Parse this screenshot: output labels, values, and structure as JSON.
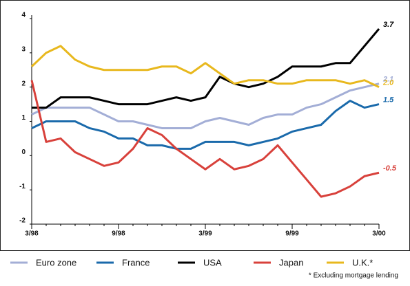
{
  "chart_data": {
    "type": "line",
    "categories": [
      "3/98",
      null,
      null,
      null,
      null,
      null,
      "9/98",
      null,
      null,
      null,
      null,
      null,
      "3/99",
      null,
      null,
      null,
      null,
      null,
      "9/99",
      null,
      null,
      null,
      null,
      null,
      "3/00"
    ],
    "series": [
      {
        "name": "Euro zone",
        "color": "#a3aed6",
        "values": [
          1.2,
          1.4,
          1.4,
          1.4,
          1.4,
          1.2,
          1.0,
          1.0,
          0.9,
          0.8,
          0.8,
          0.8,
          1.0,
          1.1,
          1.0,
          0.9,
          1.1,
          1.2,
          1.2,
          1.4,
          1.5,
          1.7,
          1.9,
          2.0,
          2.1
        ],
        "value_labels": [
          null,
          null,
          null,
          null,
          null,
          null,
          null,
          null,
          null,
          null,
          null,
          null,
          null,
          null,
          null,
          null,
          null,
          null,
          null,
          null,
          null,
          null,
          null,
          null,
          "2.1"
        ]
      },
      {
        "name": "France",
        "color": "#1a6aab",
        "values": [
          0.8,
          1.0,
          1.0,
          1.0,
          0.8,
          0.7,
          0.5,
          0.5,
          0.3,
          0.3,
          0.2,
          0.2,
          0.4,
          0.4,
          0.4,
          0.3,
          0.4,
          0.5,
          0.7,
          0.8,
          0.9,
          1.3,
          1.6,
          1.4,
          1.5
        ],
        "value_labels": [
          null,
          null,
          null,
          null,
          null,
          null,
          null,
          null,
          null,
          null,
          null,
          null,
          null,
          null,
          null,
          null,
          null,
          null,
          null,
          null,
          null,
          null,
          null,
          null,
          "1.5"
        ]
      },
      {
        "name": "USA",
        "color": "#000000",
        "values": [
          1.4,
          1.4,
          1.7,
          1.7,
          1.7,
          1.6,
          1.5,
          1.5,
          1.5,
          1.6,
          1.7,
          1.6,
          1.7,
          2.3,
          2.1,
          2.0,
          2.1,
          2.3,
          2.6,
          2.6,
          2.6,
          2.7,
          2.7,
          3.2,
          3.7
        ],
        "value_labels": [
          null,
          null,
          null,
          null,
          null,
          null,
          null,
          null,
          null,
          null,
          null,
          null,
          null,
          null,
          null,
          null,
          null,
          null,
          null,
          null,
          null,
          null,
          null,
          null,
          "3.7"
        ]
      },
      {
        "name": "Japan",
        "color": "#d8413b",
        "values": [
          2.2,
          0.4,
          0.5,
          0.1,
          -0.1,
          -0.3,
          -0.2,
          0.2,
          0.8,
          0.6,
          0.2,
          -0.1,
          -0.4,
          -0.1,
          -0.4,
          -0.3,
          -0.1,
          0.3,
          -0.2,
          -0.7,
          -1.2,
          -1.1,
          -0.9,
          -0.6,
          -0.5
        ],
        "value_labels": [
          null,
          null,
          null,
          null,
          null,
          null,
          null,
          null,
          null,
          null,
          null,
          null,
          null,
          null,
          null,
          null,
          null,
          null,
          null,
          null,
          null,
          null,
          null,
          null,
          "-0.5"
        ]
      },
      {
        "name": "U.K.*",
        "color": "#e8b81e",
        "values": [
          2.6,
          3.0,
          3.2,
          2.8,
          2.6,
          2.5,
          2.5,
          2.5,
          2.5,
          2.6,
          2.6,
          2.4,
          2.7,
          2.4,
          2.1,
          2.2,
          2.2,
          2.1,
          2.1,
          2.2,
          2.2,
          2.2,
          2.1,
          2.2,
          2.0
        ],
        "value_labels": [
          null,
          null,
          null,
          null,
          null,
          null,
          null,
          null,
          null,
          null,
          null,
          null,
          null,
          null,
          null,
          null,
          null,
          null,
          null,
          null,
          null,
          null,
          null,
          null,
          "2.0"
        ]
      }
    ],
    "ylim": [
      -2,
      4
    ],
    "yticks": [
      4,
      3,
      2,
      1,
      0,
      -1,
      -2
    ],
    "grid": false,
    "legend": "bottom",
    "annotations": [
      "* Excluding mortgage lending"
    ]
  }
}
